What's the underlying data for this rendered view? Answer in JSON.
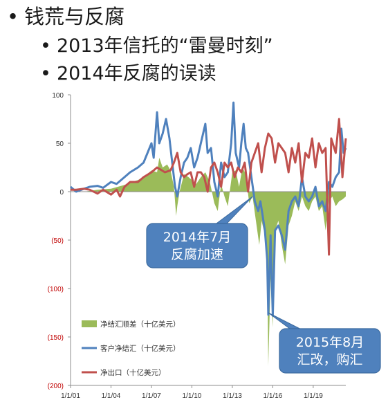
{
  "slide": {
    "bullet_main": "钱荒与反腐",
    "bullet_sub": [
      "2013年信托的“雷曼时刻”",
      "2014年反腐的误读"
    ],
    "bullet_symbol": "•"
  },
  "chart_data": {
    "type": "line",
    "title": "",
    "xlabel": "",
    "ylabel": "",
    "x_range": [
      "2001-01-01",
      "2021-06-01"
    ],
    "ylim": [
      -200,
      100
    ],
    "y_ticks": [
      100,
      50,
      0,
      -50,
      -100,
      -150,
      -200
    ],
    "y_tick_labels": [
      "100",
      "50",
      "0",
      "(50)",
      "(100)",
      "(150)",
      "(200)"
    ],
    "x_tick_labels": [
      "1/1/01",
      "1/1/04",
      "1/1/07",
      "1/1/10",
      "1/1/13",
      "1/1/16",
      "1/1/19"
    ],
    "x_tick_dates": [
      "2001-01-01",
      "2004-01-01",
      "2007-01-01",
      "2010-01-01",
      "2013-01-01",
      "2016-01-01",
      "2019-01-01"
    ],
    "grid": false,
    "legend_position": "bottom-left",
    "series": [
      {
        "name": "净结汇顺差（十亿美元）",
        "type": "area",
        "color": "#9bbb59",
        "points": [
          [
            "2001-01-01",
            0
          ],
          [
            "2002-01-01",
            0
          ],
          [
            "2003-01-01",
            2
          ],
          [
            "2004-01-01",
            3
          ],
          [
            "2004-07-01",
            5
          ],
          [
            "2005-01-01",
            7
          ],
          [
            "2005-07-01",
            10
          ],
          [
            "2006-01-01",
            12
          ],
          [
            "2006-07-01",
            16
          ],
          [
            "2007-01-01",
            22
          ],
          [
            "2007-06-01",
            20
          ],
          [
            "2007-08-01",
            35
          ],
          [
            "2007-11-01",
            25
          ],
          [
            "2008-03-01",
            28
          ],
          [
            "2008-06-01",
            22
          ],
          [
            "2008-09-01",
            5
          ],
          [
            "2008-10-01",
            -10
          ],
          [
            "2008-11-01",
            -25
          ],
          [
            "2008-12-01",
            -15
          ],
          [
            "2009-02-01",
            0
          ],
          [
            "2009-06-01",
            18
          ],
          [
            "2009-10-01",
            15
          ],
          [
            "2010-01-01",
            12
          ],
          [
            "2010-05-01",
            8
          ],
          [
            "2010-09-01",
            15
          ],
          [
            "2011-01-01",
            20
          ],
          [
            "2011-05-01",
            10
          ],
          [
            "2011-09-01",
            -12
          ],
          [
            "2011-12-01",
            -20
          ],
          [
            "2012-03-01",
            8
          ],
          [
            "2012-06-01",
            -5
          ],
          [
            "2012-09-01",
            -15
          ],
          [
            "2013-01-01",
            20
          ],
          [
            "2013-04-01",
            22
          ],
          [
            "2013-07-01",
            5
          ],
          [
            "2013-10-01",
            25
          ],
          [
            "2014-01-01",
            18
          ],
          [
            "2014-04-01",
            -12
          ],
          [
            "2014-07-01",
            -5
          ],
          [
            "2014-10-01",
            -30
          ],
          [
            "2015-01-01",
            -55
          ],
          [
            "2015-03-01",
            -30
          ],
          [
            "2015-06-01",
            -45
          ],
          [
            "2015-08-01",
            -70
          ],
          [
            "2015-09-01",
            -180
          ],
          [
            "2015-11-01",
            -90
          ],
          [
            "2016-01-01",
            -140
          ],
          [
            "2016-03-01",
            -40
          ],
          [
            "2016-06-01",
            -30
          ],
          [
            "2016-09-01",
            -55
          ],
          [
            "2016-12-01",
            -75
          ],
          [
            "2017-03-01",
            -35
          ],
          [
            "2017-06-01",
            -25
          ],
          [
            "2017-09-01",
            -10
          ],
          [
            "2017-12-01",
            -20
          ],
          [
            "2018-03-01",
            -5
          ],
          [
            "2018-06-01",
            -15
          ],
          [
            "2018-09-01",
            -20
          ],
          [
            "2018-12-01",
            -10
          ],
          [
            "2019-03-01",
            -5
          ],
          [
            "2019-06-01",
            -20
          ],
          [
            "2019-09-01",
            -15
          ],
          [
            "2019-12-01",
            -40
          ],
          [
            "2020-03-01",
            -10
          ],
          [
            "2020-06-01",
            -5
          ],
          [
            "2020-09-01",
            -15
          ],
          [
            "2020-12-01",
            -10
          ],
          [
            "2021-03-01",
            -8
          ],
          [
            "2021-06-01",
            -5
          ]
        ]
      },
      {
        "name": "客户净结汇（十亿美元）",
        "type": "line",
        "color": "#4f81bd",
        "points": [
          [
            "2001-01-01",
            5
          ],
          [
            "2001-06-01",
            0
          ],
          [
            "2002-01-01",
            3
          ],
          [
            "2002-06-01",
            5
          ],
          [
            "2003-01-01",
            6
          ],
          [
            "2003-06-01",
            4
          ],
          [
            "2004-01-01",
            10
          ],
          [
            "2004-06-01",
            8
          ],
          [
            "2005-01-01",
            15
          ],
          [
            "2005-06-01",
            20
          ],
          [
            "2006-01-01",
            25
          ],
          [
            "2006-06-01",
            30
          ],
          [
            "2007-01-01",
            50
          ],
          [
            "2007-03-01",
            35
          ],
          [
            "2007-06-01",
            82
          ],
          [
            "2007-08-01",
            50
          ],
          [
            "2007-11-01",
            60
          ],
          [
            "2008-02-01",
            75
          ],
          [
            "2008-05-01",
            55
          ],
          [
            "2008-08-01",
            25
          ],
          [
            "2008-10-01",
            5
          ],
          [
            "2008-12-01",
            -5
          ],
          [
            "2009-03-01",
            15
          ],
          [
            "2009-06-01",
            30
          ],
          [
            "2009-09-01",
            35
          ],
          [
            "2009-12-01",
            45
          ],
          [
            "2010-03-01",
            25
          ],
          [
            "2010-06-01",
            35
          ],
          [
            "2010-09-01",
            50
          ],
          [
            "2011-01-01",
            70
          ],
          [
            "2011-03-01",
            40
          ],
          [
            "2011-06-01",
            45
          ],
          [
            "2011-09-01",
            10
          ],
          [
            "2011-12-01",
            -5
          ],
          [
            "2012-03-01",
            30
          ],
          [
            "2012-06-01",
            15
          ],
          [
            "2012-09-01",
            20
          ],
          [
            "2012-12-01",
            50
          ],
          [
            "2013-02-01",
            92
          ],
          [
            "2013-04-01",
            40
          ],
          [
            "2013-07-01",
            25
          ],
          [
            "2013-09-01",
            50
          ],
          [
            "2013-11-01",
            70
          ],
          [
            "2014-01-01",
            45
          ],
          [
            "2014-03-01",
            40
          ],
          [
            "2014-06-01",
            15
          ],
          [
            "2014-09-01",
            -10
          ],
          [
            "2014-12-01",
            -20
          ],
          [
            "2015-02-01",
            -10
          ],
          [
            "2015-04-01",
            -25
          ],
          [
            "2015-06-01",
            -40
          ],
          [
            "2015-08-01",
            -70
          ],
          [
            "2015-09-01",
            -127
          ],
          [
            "2015-11-01",
            -45
          ],
          [
            "2016-01-01",
            -128
          ],
          [
            "2016-03-01",
            -40
          ],
          [
            "2016-06-01",
            -35
          ],
          [
            "2016-09-01",
            -45
          ],
          [
            "2016-12-01",
            -60
          ],
          [
            "2017-03-01",
            -20
          ],
          [
            "2017-06-01",
            -10
          ],
          [
            "2017-09-01",
            -5
          ],
          [
            "2017-12-01",
            -15
          ],
          [
            "2018-03-01",
            15
          ],
          [
            "2018-06-01",
            -5
          ],
          [
            "2018-09-01",
            -10
          ],
          [
            "2018-12-01",
            -5
          ],
          [
            "2019-03-01",
            5
          ],
          [
            "2019-06-01",
            -15
          ],
          [
            "2019-09-01",
            -10
          ],
          [
            "2019-12-01",
            -20
          ],
          [
            "2020-03-01",
            10
          ],
          [
            "2020-06-01",
            5
          ],
          [
            "2020-09-01",
            15
          ],
          [
            "2020-12-01",
            20
          ],
          [
            "2021-02-01",
            65
          ],
          [
            "2021-04-01",
            40
          ],
          [
            "2021-06-01",
            45
          ]
        ]
      },
      {
        "name": "净出口（十亿美元）",
        "type": "line",
        "color": "#c0504d",
        "points": [
          [
            "2001-01-01",
            2
          ],
          [
            "2001-06-01",
            2
          ],
          [
            "2002-01-01",
            3
          ],
          [
            "2002-06-01",
            2
          ],
          [
            "2003-01-01",
            -2
          ],
          [
            "2003-06-01",
            2
          ],
          [
            "2004-01-01",
            -3
          ],
          [
            "2004-06-01",
            2
          ],
          [
            "2004-09-01",
            -5
          ],
          [
            "2005-01-01",
            5
          ],
          [
            "2005-06-01",
            10
          ],
          [
            "2006-01-01",
            10
          ],
          [
            "2006-06-01",
            15
          ],
          [
            "2007-01-01",
            20
          ],
          [
            "2007-06-01",
            25
          ],
          [
            "2008-01-01",
            20
          ],
          [
            "2008-06-01",
            22
          ],
          [
            "2008-09-01",
            30
          ],
          [
            "2008-12-01",
            40
          ],
          [
            "2009-03-01",
            20
          ],
          [
            "2009-06-01",
            15
          ],
          [
            "2009-09-01",
            18
          ],
          [
            "2009-12-01",
            20
          ],
          [
            "2010-03-01",
            5
          ],
          [
            "2010-06-01",
            20
          ],
          [
            "2010-09-01",
            20
          ],
          [
            "2010-12-01",
            15
          ],
          [
            "2011-03-01",
            0
          ],
          [
            "2011-06-01",
            25
          ],
          [
            "2011-09-01",
            30
          ],
          [
            "2011-12-01",
            20
          ],
          [
            "2012-03-01",
            5
          ],
          [
            "2012-06-01",
            30
          ],
          [
            "2012-09-01",
            25
          ],
          [
            "2012-12-01",
            30
          ],
          [
            "2013-03-01",
            15
          ],
          [
            "2013-06-01",
            25
          ],
          [
            "2013-09-01",
            20
          ],
          [
            "2013-12-01",
            30
          ],
          [
            "2014-03-01",
            0
          ],
          [
            "2014-06-01",
            30
          ],
          [
            "2014-09-01",
            40
          ],
          [
            "2014-12-01",
            50
          ],
          [
            "2015-03-01",
            20
          ],
          [
            "2015-06-01",
            45
          ],
          [
            "2015-09-01",
            60
          ],
          [
            "2015-12-01",
            55
          ],
          [
            "2016-03-01",
            30
          ],
          [
            "2016-06-01",
            50
          ],
          [
            "2016-09-01",
            45
          ],
          [
            "2016-12-01",
            40
          ],
          [
            "2017-03-01",
            20
          ],
          [
            "2017-06-01",
            45
          ],
          [
            "2017-09-01",
            30
          ],
          [
            "2017-12-01",
            50
          ],
          [
            "2018-03-01",
            10
          ],
          [
            "2018-06-01",
            40
          ],
          [
            "2018-09-01",
            35
          ],
          [
            "2018-12-01",
            55
          ],
          [
            "2019-03-01",
            25
          ],
          [
            "2019-06-01",
            50
          ],
          [
            "2019-09-01",
            40
          ],
          [
            "2019-12-01",
            45
          ],
          [
            "2020-03-01",
            -65
          ],
          [
            "2020-05-01",
            55
          ],
          [
            "2020-09-01",
            40
          ],
          [
            "2020-12-01",
            75
          ],
          [
            "2021-03-01",
            15
          ],
          [
            "2021-06-01",
            55
          ]
        ]
      }
    ],
    "annotations": [
      {
        "id": "ann1",
        "text_lines": [
          "2014年7月",
          "反腐加速"
        ],
        "target": [
          "2014-07-01",
          -5
        ]
      },
      {
        "id": "ann2",
        "text_lines": [
          "2015年8月",
          "汇改，购汇"
        ],
        "target": [
          "2015-09-01",
          -125
        ]
      }
    ],
    "colors": {
      "axis": "#8c8c8c",
      "negative_tick": "#c00000",
      "callout_fill": "#4f81bd",
      "callout_border": "#3b6a9e"
    }
  }
}
